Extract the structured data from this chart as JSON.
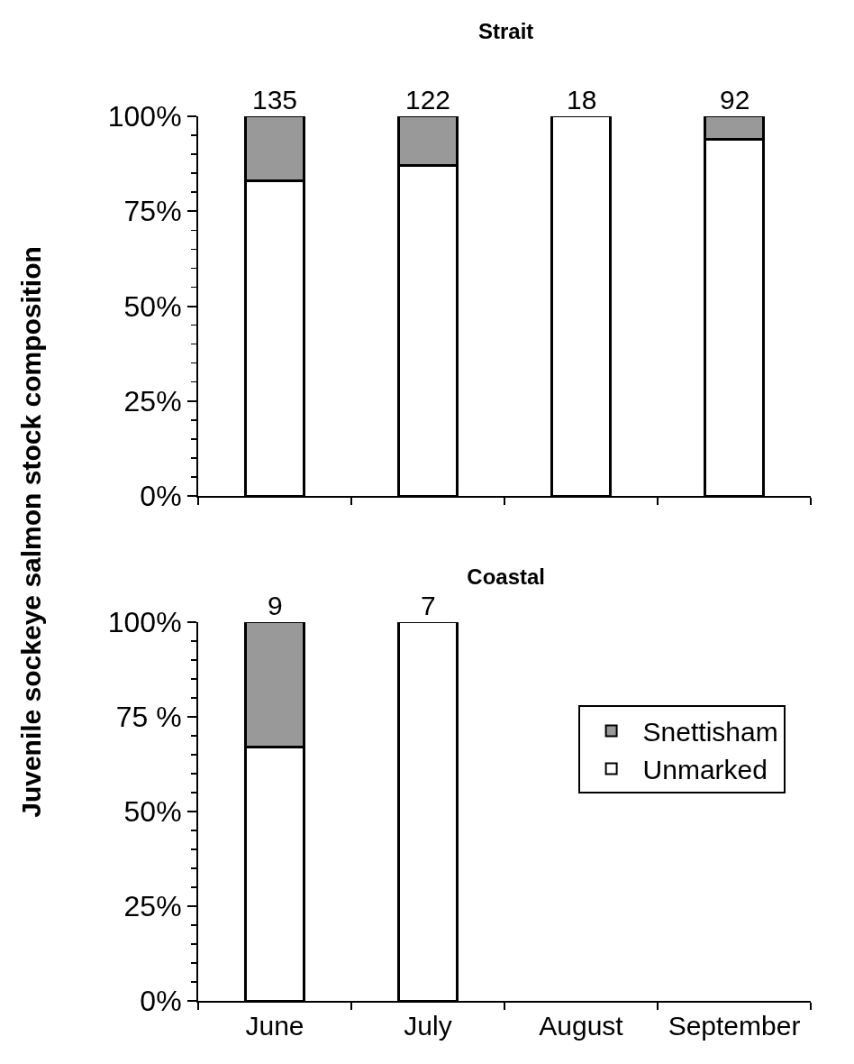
{
  "chart_data": [
    {
      "type": "bar",
      "title": "Strait",
      "ylabel": "Juvenile sockeye salmon stock composition",
      "categories": [
        "June",
        "July",
        "August",
        "September"
      ],
      "stacked": true,
      "series": [
        {
          "color": "#ffffff",
          "values": [
            83,
            87,
            100,
            94
          ]
        },
        {
          "color": "#999999",
          "values": [
            17,
            13,
            0,
            6
          ]
        }
      ],
      "ylim": [
        0,
        100
      ],
      "yticks": [
        {
          "value": 0,
          "label": "0%"
        },
        {
          "value": 25,
          "label": "25%"
        },
        {
          "value": 50,
          "label": "50%"
        },
        {
          "value": 75,
          "label": "75%"
        },
        {
          "value": 100,
          "label": "100%"
        }
      ],
      "annotations": [
        {
          "text": "135",
          "x": "June",
          "y": 100
        },
        {
          "text": "122",
          "x": "July",
          "y": 100
        },
        {
          "text": "18",
          "x": "August",
          "y": 100
        },
        {
          "text": "92",
          "x": "September",
          "y": 100
        }
      ],
      "tick_labels": "y",
      "grid": false,
      "legend": false
    },
    {
      "type": "bar",
      "title": "Coastal",
      "categories": [
        "June",
        "July",
        "August",
        "September"
      ],
      "stacked": true,
      "series": [
        {
          "name": "Unmarked",
          "color": "#ffffff",
          "values": [
            67,
            100,
            null,
            null
          ]
        },
        {
          "name": "Snettisham",
          "color": "#999999",
          "values": [
            33,
            0,
            null,
            null
          ]
        }
      ],
      "ylim": [
        0,
        100
      ],
      "yticks": [
        {
          "value": 0,
          "label": "0%"
        },
        {
          "value": 25,
          "label": "25%"
        },
        {
          "value": 50,
          "label": "50%"
        },
        {
          "value": 75,
          "label": "75 %"
        },
        {
          "value": 100,
          "label": "100%"
        }
      ],
      "annotations": [
        {
          "text": "9",
          "x": "June",
          "y": 100
        },
        {
          "text": "7",
          "x": "July",
          "y": 100
        }
      ],
      "grid": false,
      "legend": "right"
    }
  ]
}
